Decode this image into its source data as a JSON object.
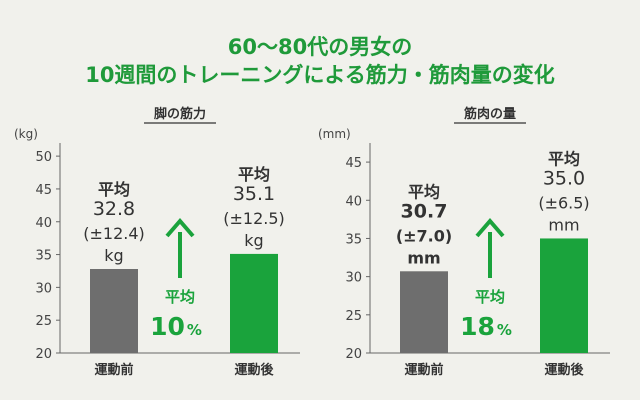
{
  "title": {
    "line1": "60〜80代の男女の",
    "line2": "10週間のトレーニングによる筋力・筋肉量の変化"
  },
  "colors": {
    "title": "#1f9a3a",
    "bar_before": "#6e6e6e",
    "bar_after": "#1aa33c",
    "accent": "#1aa33c",
    "axis": "#666666",
    "background": "#f1f1ec"
  },
  "chart_data": [
    {
      "type": "bar",
      "title": "脚の筋力",
      "unit": "(kg)",
      "ylim": [
        20,
        50
      ],
      "yticks": [
        "20",
        "25",
        "30",
        "35",
        "40",
        "45",
        "50"
      ],
      "categories": [
        "運動前",
        "運動後"
      ],
      "values": [
        32.8,
        35.1
      ],
      "labels": [
        [
          "平均",
          "32.8",
          "(±12.4)",
          "kg"
        ],
        [
          "平均",
          "35.1",
          "(±12.5)",
          "kg"
        ]
      ],
      "change": {
        "head": "平均",
        "value": "10",
        "unit": "%"
      },
      "grid": false
    },
    {
      "type": "bar",
      "title": "筋肉の量",
      "unit": "(mm)",
      "ylim": [
        20,
        47.5
      ],
      "yticks": [
        "20",
        "25",
        "30",
        "35",
        "40",
        "45"
      ],
      "categories": [
        "運動前",
        "運動後"
      ],
      "values": [
        30.7,
        35.0
      ],
      "labels": [
        [
          "平均",
          "30.7",
          "(±7.0)",
          "mm"
        ],
        [
          "平均",
          "35.0",
          "(±6.5)",
          "mm"
        ]
      ],
      "change": {
        "head": "平均",
        "value": "18",
        "unit": "%"
      },
      "grid": false
    }
  ]
}
